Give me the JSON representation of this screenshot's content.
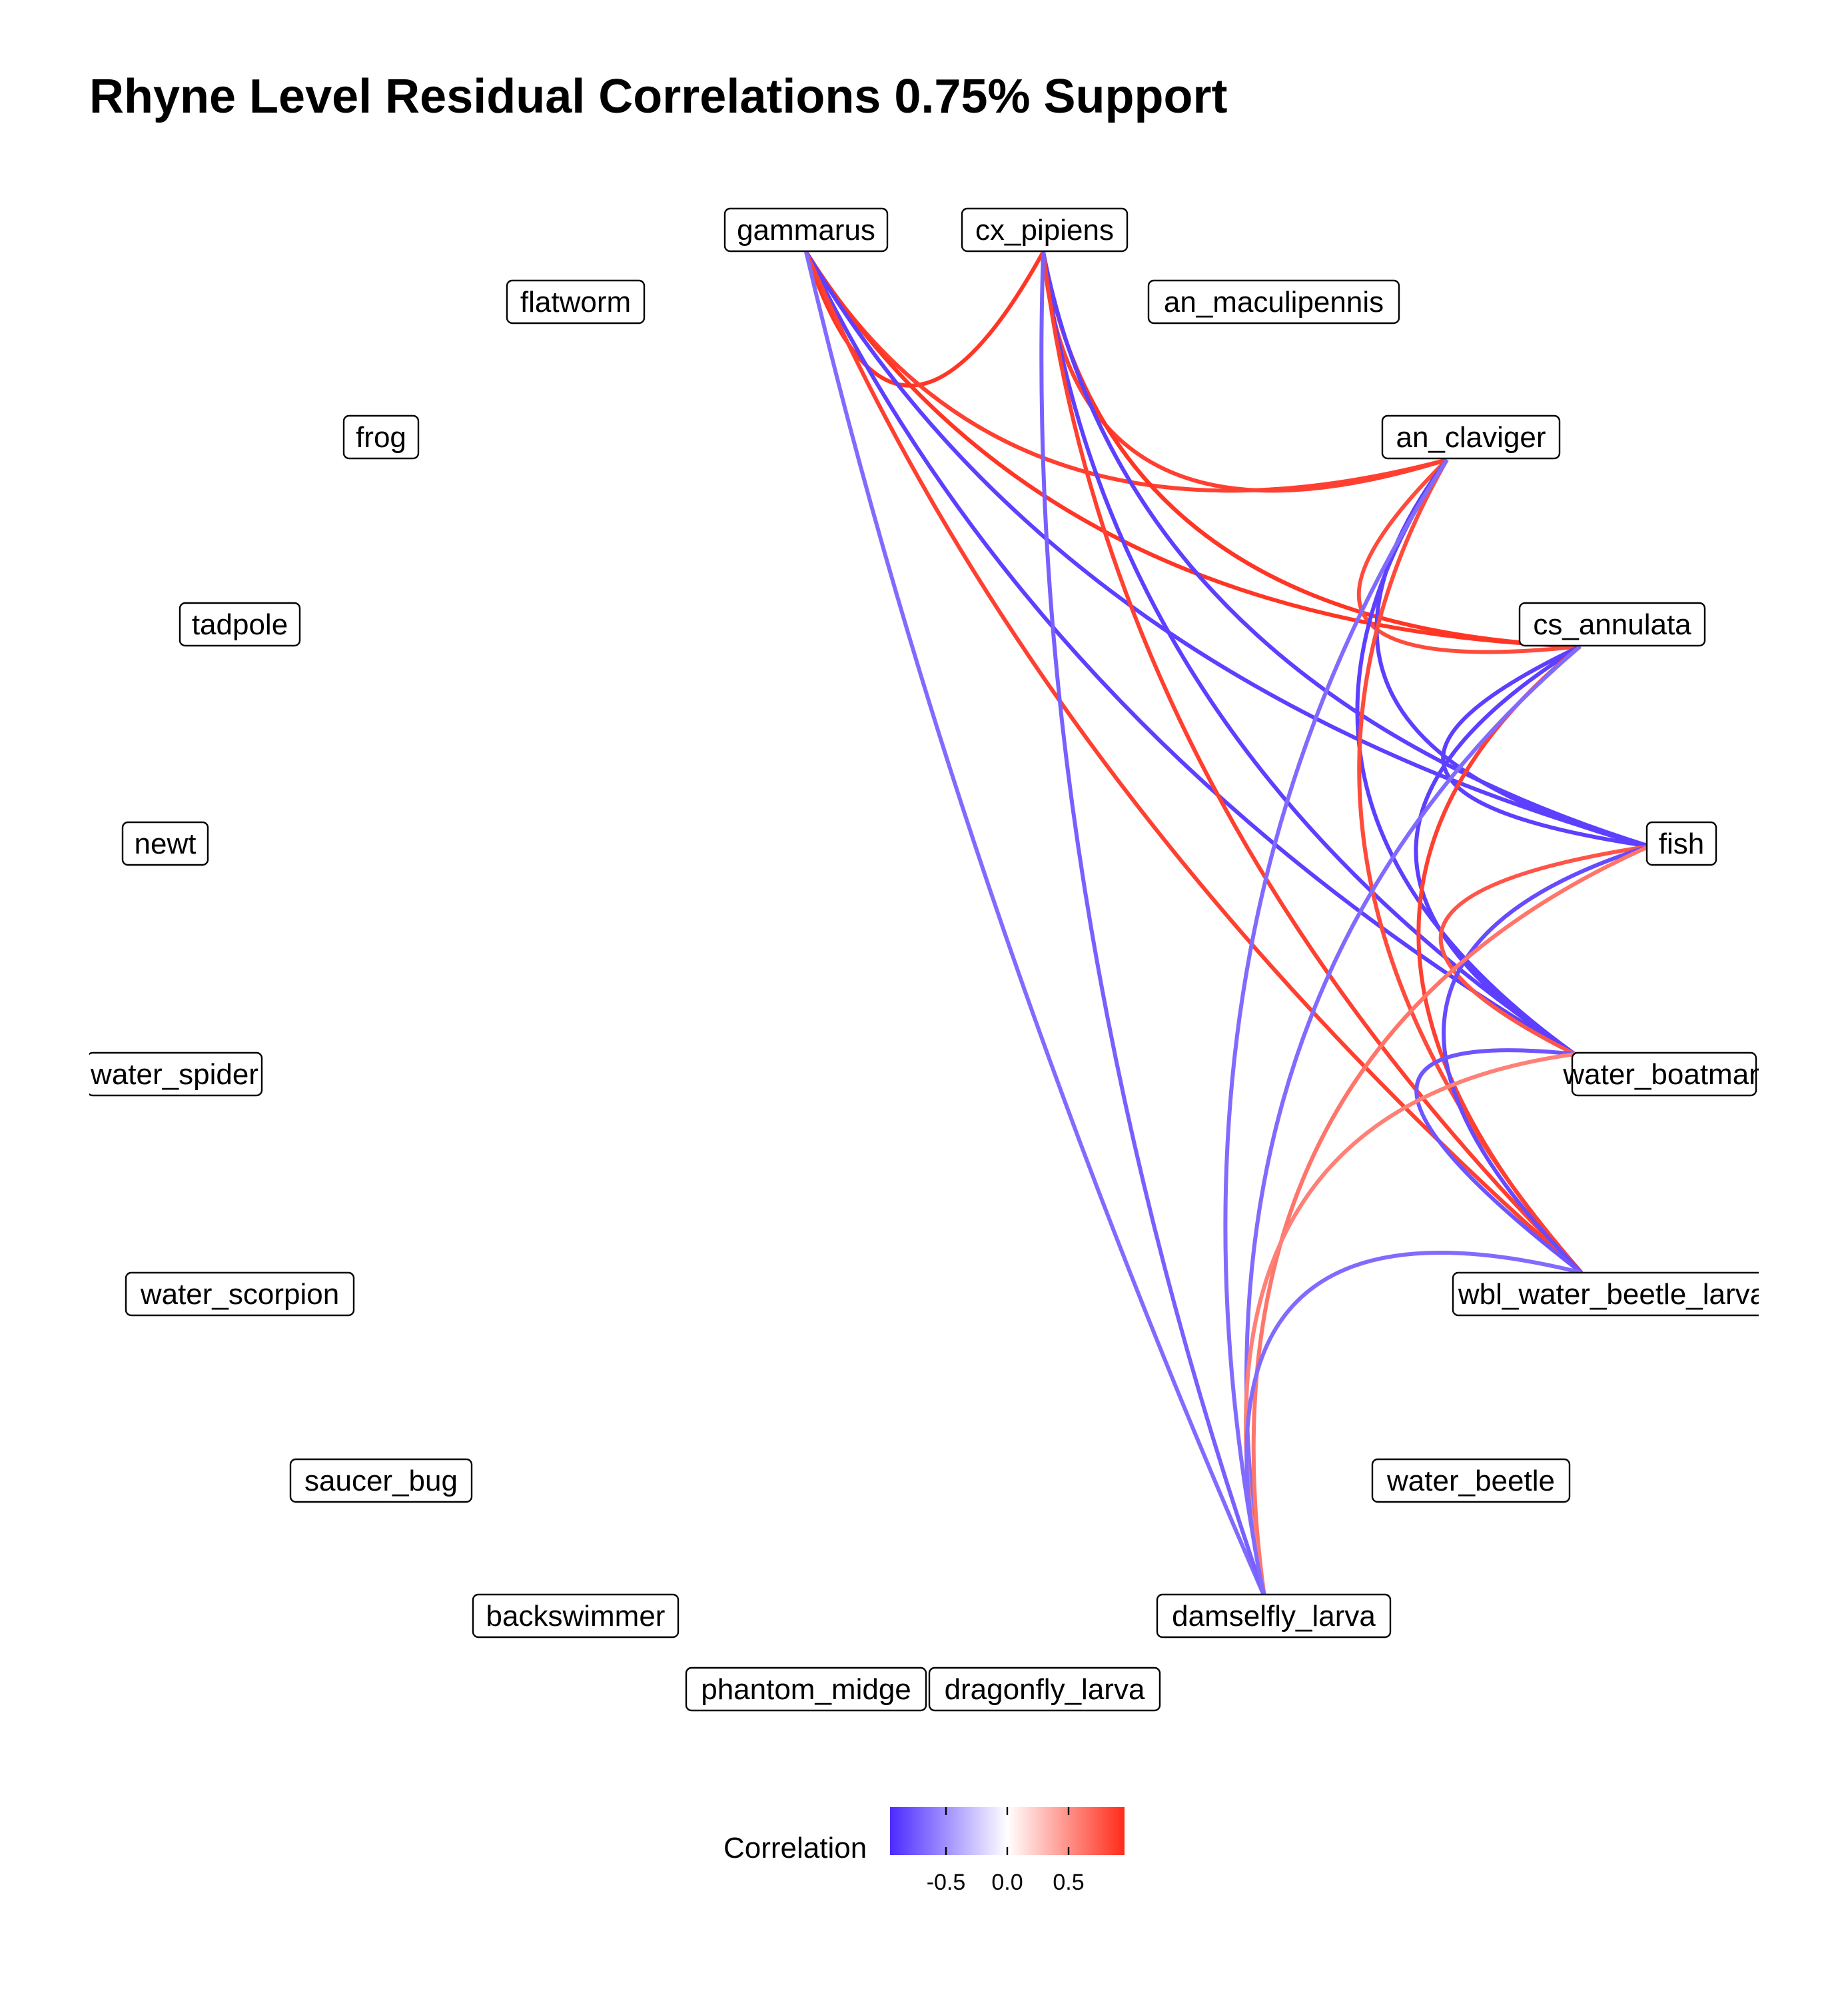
{
  "title": "Rhyne Level Residual Correlations 0.75% Support",
  "nodes": [
    {
      "id": "gammarus",
      "label": "gammarus"
    },
    {
      "id": "cx_pipiens",
      "label": "cx_pipiens"
    },
    {
      "id": "flatworm",
      "label": "flatworm"
    },
    {
      "id": "an_maculipennis",
      "label": "an_maculipennis"
    },
    {
      "id": "frog",
      "label": "frog"
    },
    {
      "id": "an_claviger",
      "label": "an_claviger"
    },
    {
      "id": "tadpole",
      "label": "tadpole"
    },
    {
      "id": "cs_annulata",
      "label": "cs_annulata"
    },
    {
      "id": "newt",
      "label": "newt"
    },
    {
      "id": "fish",
      "label": "fish"
    },
    {
      "id": "water_spider",
      "label": "water_spider"
    },
    {
      "id": "water_boatman",
      "label": "water_boatman"
    },
    {
      "id": "water_scorpion",
      "label": "water_scorpion"
    },
    {
      "id": "wbl_water_beetle_larva",
      "label": "wbl_water_beetle_larva"
    },
    {
      "id": "saucer_bug",
      "label": "saucer_bug"
    },
    {
      "id": "water_beetle",
      "label": "water_beetle"
    },
    {
      "id": "backswimmer",
      "label": "backswimmer"
    },
    {
      "id": "damselfly_larva",
      "label": "damselfly_larva"
    },
    {
      "id": "phantom_midge",
      "label": "phantom_midge"
    },
    {
      "id": "dragonfly_larva",
      "label": "dragonfly_larva"
    }
  ],
  "edges": [
    {
      "source": "gammarus",
      "target": "cx_pipiens",
      "weight": 0.95
    },
    {
      "source": "gammarus",
      "target": "an_claviger",
      "weight": 0.9
    },
    {
      "source": "gammarus",
      "target": "cs_annulata",
      "weight": 0.95
    },
    {
      "source": "gammarus",
      "target": "fish",
      "weight": -0.9
    },
    {
      "source": "gammarus",
      "target": "water_boatman",
      "weight": -0.9
    },
    {
      "source": "gammarus",
      "target": "wbl_water_beetle_larva",
      "weight": 0.9
    },
    {
      "source": "gammarus",
      "target": "damselfly_larva",
      "weight": -0.7
    },
    {
      "source": "cx_pipiens",
      "target": "an_claviger",
      "weight": 0.9
    },
    {
      "source": "cx_pipiens",
      "target": "cs_annulata",
      "weight": 0.95
    },
    {
      "source": "cx_pipiens",
      "target": "fish",
      "weight": -0.9
    },
    {
      "source": "cx_pipiens",
      "target": "water_boatman",
      "weight": -0.9
    },
    {
      "source": "cx_pipiens",
      "target": "wbl_water_beetle_larva",
      "weight": 0.9
    },
    {
      "source": "cx_pipiens",
      "target": "damselfly_larva",
      "weight": -0.75
    },
    {
      "source": "an_claviger",
      "target": "cs_annulata",
      "weight": 0.85
    },
    {
      "source": "an_claviger",
      "target": "fish",
      "weight": -0.9
    },
    {
      "source": "an_claviger",
      "target": "water_boatman",
      "weight": -0.9
    },
    {
      "source": "an_claviger",
      "target": "wbl_water_beetle_larva",
      "weight": 0.85
    },
    {
      "source": "an_claviger",
      "target": "damselfly_larva",
      "weight": -0.7
    },
    {
      "source": "cs_annulata",
      "target": "fish",
      "weight": -0.9
    },
    {
      "source": "cs_annulata",
      "target": "water_boatman",
      "weight": -0.9
    },
    {
      "source": "cs_annulata",
      "target": "wbl_water_beetle_larva",
      "weight": 0.9
    },
    {
      "source": "cs_annulata",
      "target": "damselfly_larva",
      "weight": -0.7
    },
    {
      "source": "fish",
      "target": "water_boatman",
      "weight": 0.8
    },
    {
      "source": "fish",
      "target": "wbl_water_beetle_larva",
      "weight": -0.85
    },
    {
      "source": "fish",
      "target": "damselfly_larva",
      "weight": 0.65
    },
    {
      "source": "water_boatman",
      "target": "wbl_water_beetle_larva",
      "weight": -0.8
    },
    {
      "source": "water_boatman",
      "target": "damselfly_larva",
      "weight": 0.6
    },
    {
      "source": "wbl_water_beetle_larva",
      "target": "damselfly_larva",
      "weight": -0.7
    }
  ],
  "legend": {
    "title": "Correlation",
    "ticks": [
      "-0.5",
      "0.0",
      "0.5"
    ],
    "colors": {
      "low": "#4b2bff",
      "mid": "#ffffff",
      "high": "#ff2b1a"
    }
  }
}
